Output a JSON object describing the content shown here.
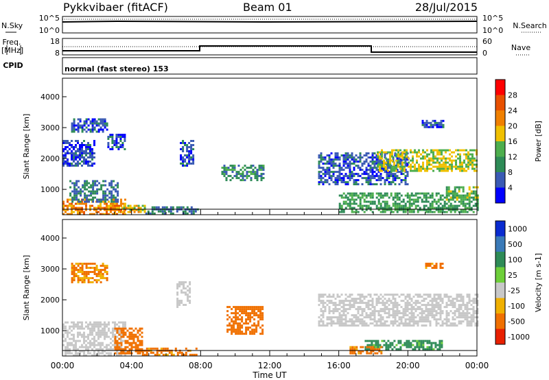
{
  "header": {
    "title": "Pykkvibaer (fitACF)",
    "beam": "Beam 01",
    "date": "28/Jul/2015"
  },
  "params": {
    "nsky_label": "N.Sky",
    "nsearch_label": "N.Search",
    "freq_label_line1": "Freq.",
    "freq_label_line2": "[MHz]",
    "nave_label": "Nave",
    "cpid_label": "CPID",
    "cpid_text": "normal (fast stereo) 153",
    "nsky_ticks": [
      "10^5",
      "10^0"
    ],
    "nsearch_ticks": [
      "10^5",
      "10^0"
    ],
    "freq_ticks": [
      "18",
      "8"
    ],
    "nave_ticks": [
      "60",
      "0"
    ]
  },
  "colors": {
    "power_scale": [
      "#0000ff",
      "#3a5ab4",
      "#2e8b57",
      "#4dae4d",
      "#f0c000",
      "#f08000",
      "#e85000",
      "#ff0000"
    ],
    "velocity_scale": [
      "#0a2bd0",
      "#3a7ab8",
      "#2e8b57",
      "#6ecf3a",
      "#c8c8c8",
      "#f0b000",
      "#f07000",
      "#e82000"
    ]
  },
  "chart_data": [
    {
      "type": "heatmap",
      "name": "power",
      "ylabel": "Slant Range [km]",
      "yticks": [
        "1000",
        "2000",
        "3000",
        "4000"
      ],
      "ylim": [
        180,
        4600
      ],
      "xlim": [
        0,
        24
      ],
      "colorbar_label": "Power [dB]",
      "colorbar_ticks": [
        "4",
        "8",
        "12",
        "16",
        "20",
        "24",
        "28"
      ],
      "colorbar_range": [
        0,
        32
      ],
      "echo_regions": [
        {
          "x": [
            0.0,
            3.6
          ],
          "y": [
            200,
            700
          ],
          "value": 22
        },
        {
          "x": [
            0.4,
            3.2
          ],
          "y": [
            600,
            1300
          ],
          "value": 8
        },
        {
          "x": [
            3.4,
            4.8
          ],
          "y": [
            250,
            500
          ],
          "value": 18
        },
        {
          "x": [
            0.5,
            2.6
          ],
          "y": [
            2900,
            3300
          ],
          "value": 6
        },
        {
          "x": [
            0.0,
            1.8
          ],
          "y": [
            1800,
            2600
          ],
          "value": 5
        },
        {
          "x": [
            2.6,
            3.6
          ],
          "y": [
            2300,
            2800
          ],
          "value": 5
        },
        {
          "x": [
            6.8,
            7.6
          ],
          "y": [
            1800,
            2600
          ],
          "value": 6
        },
        {
          "x": [
            9.2,
            11.6
          ],
          "y": [
            1300,
            1800
          ],
          "value": 10
        },
        {
          "x": [
            4.8,
            7.8
          ],
          "y": [
            250,
            450
          ],
          "value": 8
        },
        {
          "x": [
            14.8,
            20.0
          ],
          "y": [
            1200,
            2200
          ],
          "value": 6
        },
        {
          "x": [
            18.2,
            24.0
          ],
          "y": [
            1600,
            2300
          ],
          "value": 16
        },
        {
          "x": [
            16.0,
            24.0
          ],
          "y": [
            250,
            900
          ],
          "value": 12
        },
        {
          "x": [
            20.8,
            22.0
          ],
          "y": [
            3050,
            3250
          ],
          "value": 6
        },
        {
          "x": [
            22.2,
            24.0
          ],
          "y": [
            700,
            1100
          ],
          "value": 14
        }
      ]
    },
    {
      "type": "heatmap",
      "name": "velocity",
      "ylabel": "Slant Range [km]",
      "yticks": [
        "1000",
        "2000",
        "3000",
        "4000"
      ],
      "ylim": [
        180,
        4600
      ],
      "xlabel": "Time UT",
      "xticks": [
        "00:00",
        "04:00",
        "08:00",
        "12:00",
        "16:00",
        "20:00",
        "00:00"
      ],
      "xlim": [
        0,
        24
      ],
      "colorbar_label": "Velocity [m s-1]",
      "colorbar_ticks": [
        "1000",
        "500",
        "100",
        "25",
        "-25",
        "-100",
        "-500",
        "-1000"
      ],
      "echo_regions": [
        {
          "x": [
            0.0,
            3.6
          ],
          "y": [
            200,
            1300
          ],
          "value": 0
        },
        {
          "x": [
            3.0,
            4.6
          ],
          "y": [
            250,
            1100
          ],
          "value": -300
        },
        {
          "x": [
            4.6,
            7.8
          ],
          "y": [
            250,
            450
          ],
          "value": -150
        },
        {
          "x": [
            0.5,
            2.6
          ],
          "y": [
            2600,
            3200
          ],
          "value": -120
        },
        {
          "x": [
            9.5,
            11.6
          ],
          "y": [
            900,
            1800
          ],
          "value": -300
        },
        {
          "x": [
            14.8,
            24.0
          ],
          "y": [
            1200,
            2200
          ],
          "value": 0
        },
        {
          "x": [
            17.5,
            22.0
          ],
          "y": [
            400,
            700
          ],
          "value": 150
        },
        {
          "x": [
            16.5,
            18.5
          ],
          "y": [
            250,
            500
          ],
          "value": -150
        },
        {
          "x": [
            6.6,
            7.4
          ],
          "y": [
            1800,
            2600
          ],
          "value": 0
        },
        {
          "x": [
            21.0,
            22.0
          ],
          "y": [
            3050,
            3200
          ],
          "value": -120
        }
      ]
    }
  ]
}
